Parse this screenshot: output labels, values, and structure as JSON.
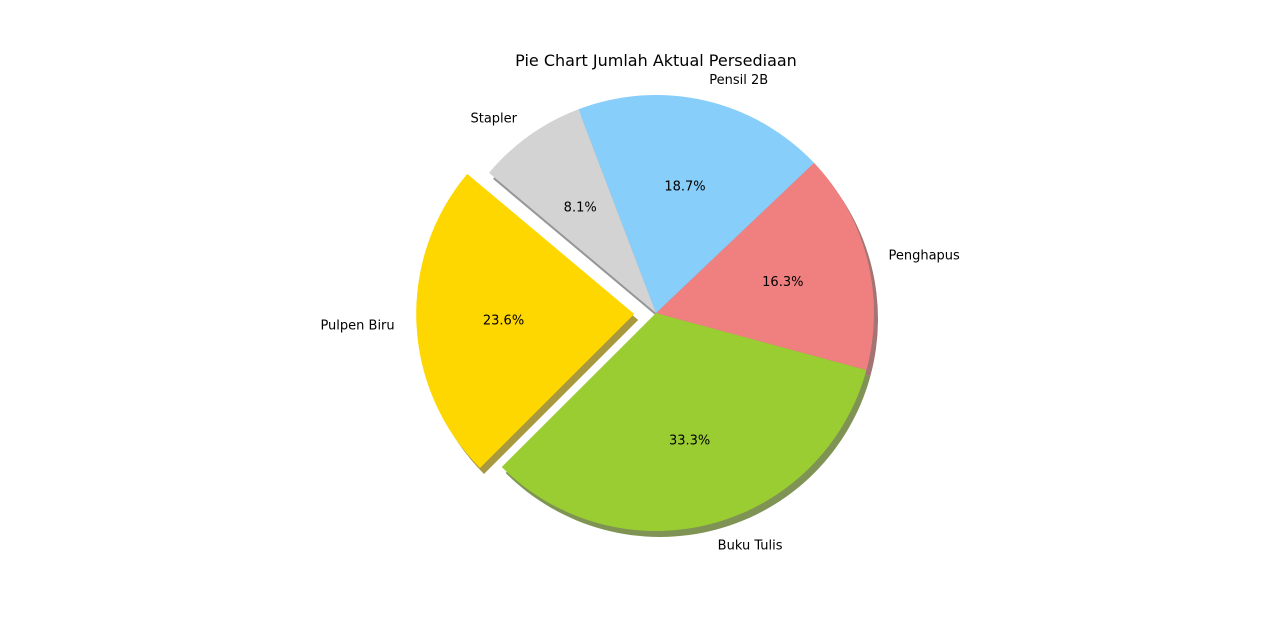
{
  "chart_data": {
    "type": "pie",
    "title": "Pie Chart Jumlah Aktual Persediaan",
    "categories": [
      "Pulpen Biru",
      "Buku Tulis",
      "Penghapus",
      "Pensil 2B",
      "Stapler"
    ],
    "values": [
      23.6,
      33.3,
      16.3,
      18.7,
      8.1
    ],
    "labels_pct": [
      "23.6%",
      "33.3%",
      "16.3%",
      "18.7%",
      "8.1%"
    ],
    "colors": [
      "#FFD700",
      "#9ACD32",
      "#F08080",
      "#87CEFA",
      "#D3D3D3"
    ],
    "explode": [
      0.1,
      0,
      0,
      0,
      0
    ],
    "start_angle_deg": 140,
    "direction": "counterclockwise",
    "shadow": true,
    "legend": "none"
  }
}
